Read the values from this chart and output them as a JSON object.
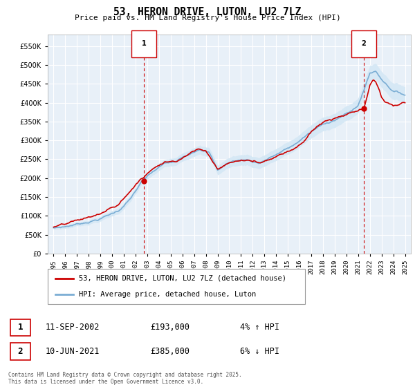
{
  "title": "53, HERON DRIVE, LUTON, LU2 7LZ",
  "subtitle": "Price paid vs. HM Land Registry's House Price Index (HPI)",
  "house_color": "#cc0000",
  "hpi_color": "#7aadd4",
  "hpi_fill_color": "#d6e8f5",
  "plot_bg_color": "#e8f0f8",
  "marker1_date": "11-SEP-2002",
  "marker1_price": 193000,
  "marker1_label": "4% ↑ HPI",
  "marker2_date": "10-JUN-2021",
  "marker2_price": 385000,
  "marker2_label": "6% ↓ HPI",
  "ylim": [
    0,
    580000
  ],
  "yticks": [
    0,
    50000,
    100000,
    150000,
    200000,
    250000,
    300000,
    350000,
    400000,
    450000,
    500000,
    550000
  ],
  "footer": "Contains HM Land Registry data © Crown copyright and database right 2025.\nThis data is licensed under the Open Government Licence v3.0.",
  "legend_house": "53, HERON DRIVE, LUTON, LU2 7LZ (detached house)",
  "legend_hpi": "HPI: Average price, detached house, Luton",
  "marker1_x": 2002.708,
  "marker2_x": 2021.458
}
